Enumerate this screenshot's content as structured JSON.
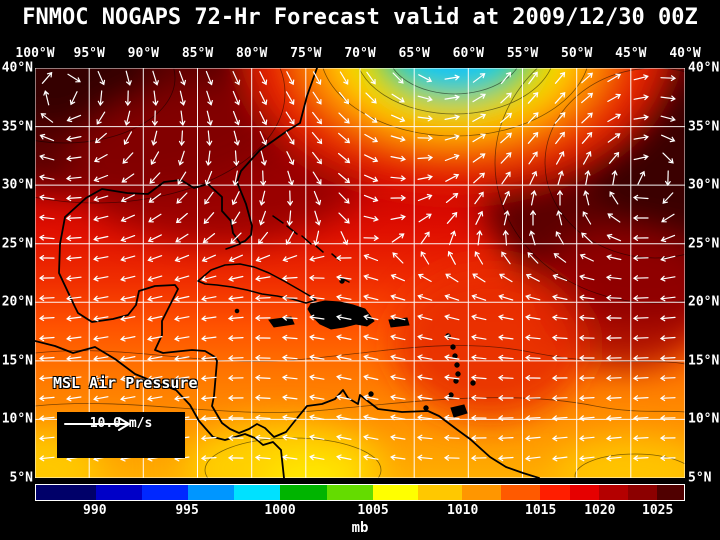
{
  "title": "FNMOC NOGAPS 72-Hr Forecast valid at 2009/12/30 00Z",
  "map": {
    "field_label": "MSL Air Pressure",
    "wind_scale_label": "10.0 m/s",
    "lon_labels": [
      "100°W",
      "95°W",
      "90°W",
      "85°W",
      "80°W",
      "75°W",
      "70°W",
      "65°W",
      "60°W",
      "55°W",
      "50°W",
      "45°W",
      "40°W"
    ],
    "lat_labels": [
      "40°N",
      "35°N",
      "30°N",
      "25°N",
      "20°N",
      "15°N",
      "10°N",
      "5°N"
    ]
  },
  "colorbar": {
    "unit": "mb",
    "tick_labels": [
      "990",
      "995",
      "1000",
      "1005",
      "1010",
      "1015",
      "1020",
      "1025"
    ],
    "tick_positions": [
      0.092,
      0.234,
      0.377,
      0.52,
      0.658,
      0.778,
      0.869,
      0.958
    ],
    "segments": [
      {
        "color": "#000069",
        "w": 0.092
      },
      {
        "color": "#0000c8",
        "w": 0.071
      },
      {
        "color": "#0028ff",
        "w": 0.071
      },
      {
        "color": "#0096ff",
        "w": 0.0715
      },
      {
        "color": "#00e1ff",
        "w": 0.0715
      },
      {
        "color": "#00b400",
        "w": 0.0715
      },
      {
        "color": "#64dc00",
        "w": 0.0715
      },
      {
        "color": "#ffff00",
        "w": 0.069
      },
      {
        "color": "#ffc800",
        "w": 0.069
      },
      {
        "color": "#ff9600",
        "w": 0.06
      },
      {
        "color": "#ff5a00",
        "w": 0.06
      },
      {
        "color": "#ff1e00",
        "w": 0.0455
      },
      {
        "color": "#e60000",
        "w": 0.0455
      },
      {
        "color": "#b40000",
        "w": 0.0445
      },
      {
        "color": "#8c0000",
        "w": 0.0445
      },
      {
        "color": "#500000",
        "w": 0.042
      }
    ]
  }
}
